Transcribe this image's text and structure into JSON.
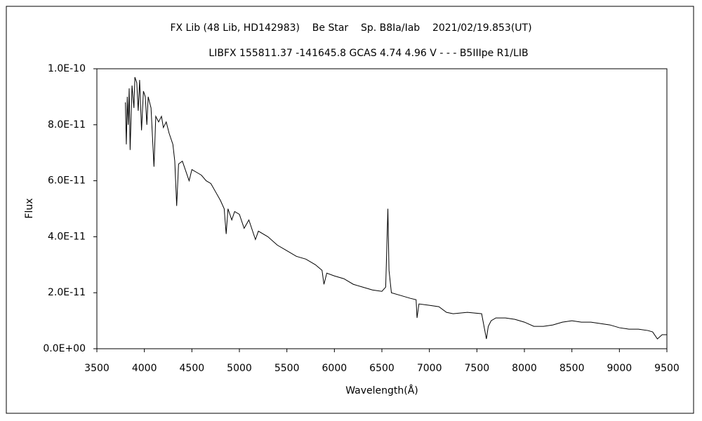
{
  "chart_data": {
    "type": "line",
    "title": "FX Lib (48 Lib, HD142983)    Be Star    Sp. B8Ia/Iab    2021/02/19.853(UT)",
    "subtitle": "LIBFX 155811.37 -141645.8 GCAS 4.74 4.96 V - - - B5IIIpe R1/LIB",
    "x_label": "Wavelength(Å)",
    "y_label": "Flux",
    "xlim": [
      3500,
      9500
    ],
    "xticks": [
      3500,
      4000,
      4500,
      5000,
      5500,
      6000,
      6500,
      7000,
      7500,
      8000,
      8500,
      9000,
      9500
    ],
    "ylim": [
      0,
      1e-10
    ],
    "yticks": [
      {
        "value": 0,
        "label": "0.0E+00"
      },
      {
        "value": 2e-11,
        "label": "2.0E-11"
      },
      {
        "value": 4e-11,
        "label": "4.0E-11"
      },
      {
        "value": 6e-11,
        "label": "6.0E-11"
      },
      {
        "value": 8e-11,
        "label": "8.0E-11"
      },
      {
        "value": 1e-10,
        "label": "1.0E-10"
      }
    ],
    "grid": false,
    "series": [
      {
        "color": "#000000",
        "x": [
          3800,
          3810,
          3820,
          3830,
          3840,
          3850,
          3870,
          3890,
          3900,
          3920,
          3935,
          3950,
          3970,
          3990,
          4010,
          4026,
          4040,
          4070,
          4101,
          4120,
          4150,
          4180,
          4200,
          4230,
          4260,
          4300,
          4320,
          4340,
          4360,
          4400,
          4471,
          4500,
          4550,
          4600,
          4650,
          4700,
          4750,
          4800,
          4840,
          4861,
          4880,
          4920,
          4950,
          5000,
          5050,
          5100,
          5169,
          5200,
          5300,
          5400,
          5500,
          5600,
          5700,
          5800,
          5870,
          5890,
          5920,
          6000,
          6100,
          6200,
          6300,
          6400,
          6500,
          6540,
          6563,
          6575,
          6600,
          6700,
          6800,
          6860,
          6870,
          6890,
          7000,
          7100,
          7180,
          7250,
          7400,
          7550,
          7600,
          7620,
          7650,
          7700,
          7800,
          7900,
          8000,
          8100,
          8200,
          8300,
          8400,
          8500,
          8600,
          8700,
          8800,
          8900,
          9000,
          9100,
          9200,
          9300,
          9350,
          9400,
          9450,
          9500
        ],
        "values": [
          8.8e-11,
          7.3e-11,
          9e-11,
          8e-11,
          9.3e-11,
          7.1e-11,
          9.4e-11,
          8.6e-11,
          9.7e-11,
          9.5e-11,
          8.5e-11,
          9.6e-11,
          7.8e-11,
          9.2e-11,
          9e-11,
          8e-11,
          9e-11,
          8.6e-11,
          6.5e-11,
          8.3e-11,
          8.1e-11,
          8.3e-11,
          7.9e-11,
          8.1e-11,
          7.7e-11,
          7.3e-11,
          6.7e-11,
          5.1e-11,
          6.6e-11,
          6.7e-11,
          6e-11,
          6.4e-11,
          6.3e-11,
          6.2e-11,
          6e-11,
          5.9e-11,
          5.6e-11,
          5.3e-11,
          5e-11,
          4.1e-11,
          5e-11,
          4.6e-11,
          4.9e-11,
          4.8e-11,
          4.3e-11,
          4.6e-11,
          3.9e-11,
          4.2e-11,
          4e-11,
          3.7e-11,
          3.5e-11,
          3.3e-11,
          3.2e-11,
          3e-11,
          2.8e-11,
          2.3e-11,
          2.7e-11,
          2.6e-11,
          2.5e-11,
          2.3e-11,
          2.2e-11,
          2.1e-11,
          2.05e-11,
          2.2e-11,
          5e-11,
          2.8e-11,
          2e-11,
          1.9e-11,
          1.8e-11,
          1.75e-11,
          1.1e-11,
          1.6e-11,
          1.55e-11,
          1.5e-11,
          1.3e-11,
          1.25e-11,
          1.3e-11,
          1.25e-11,
          3.5e-12,
          8e-12,
          1e-11,
          1.1e-11,
          1.1e-11,
          1.05e-11,
          9.5e-12,
          8e-12,
          8e-12,
          8.5e-12,
          9.5e-12,
          1e-11,
          9.5e-12,
          9.5e-12,
          9e-12,
          8.5e-12,
          7.5e-12,
          7e-12,
          7e-12,
          6.5e-12,
          6e-12,
          3.5e-12,
          5e-12,
          5e-12
        ]
      }
    ]
  }
}
